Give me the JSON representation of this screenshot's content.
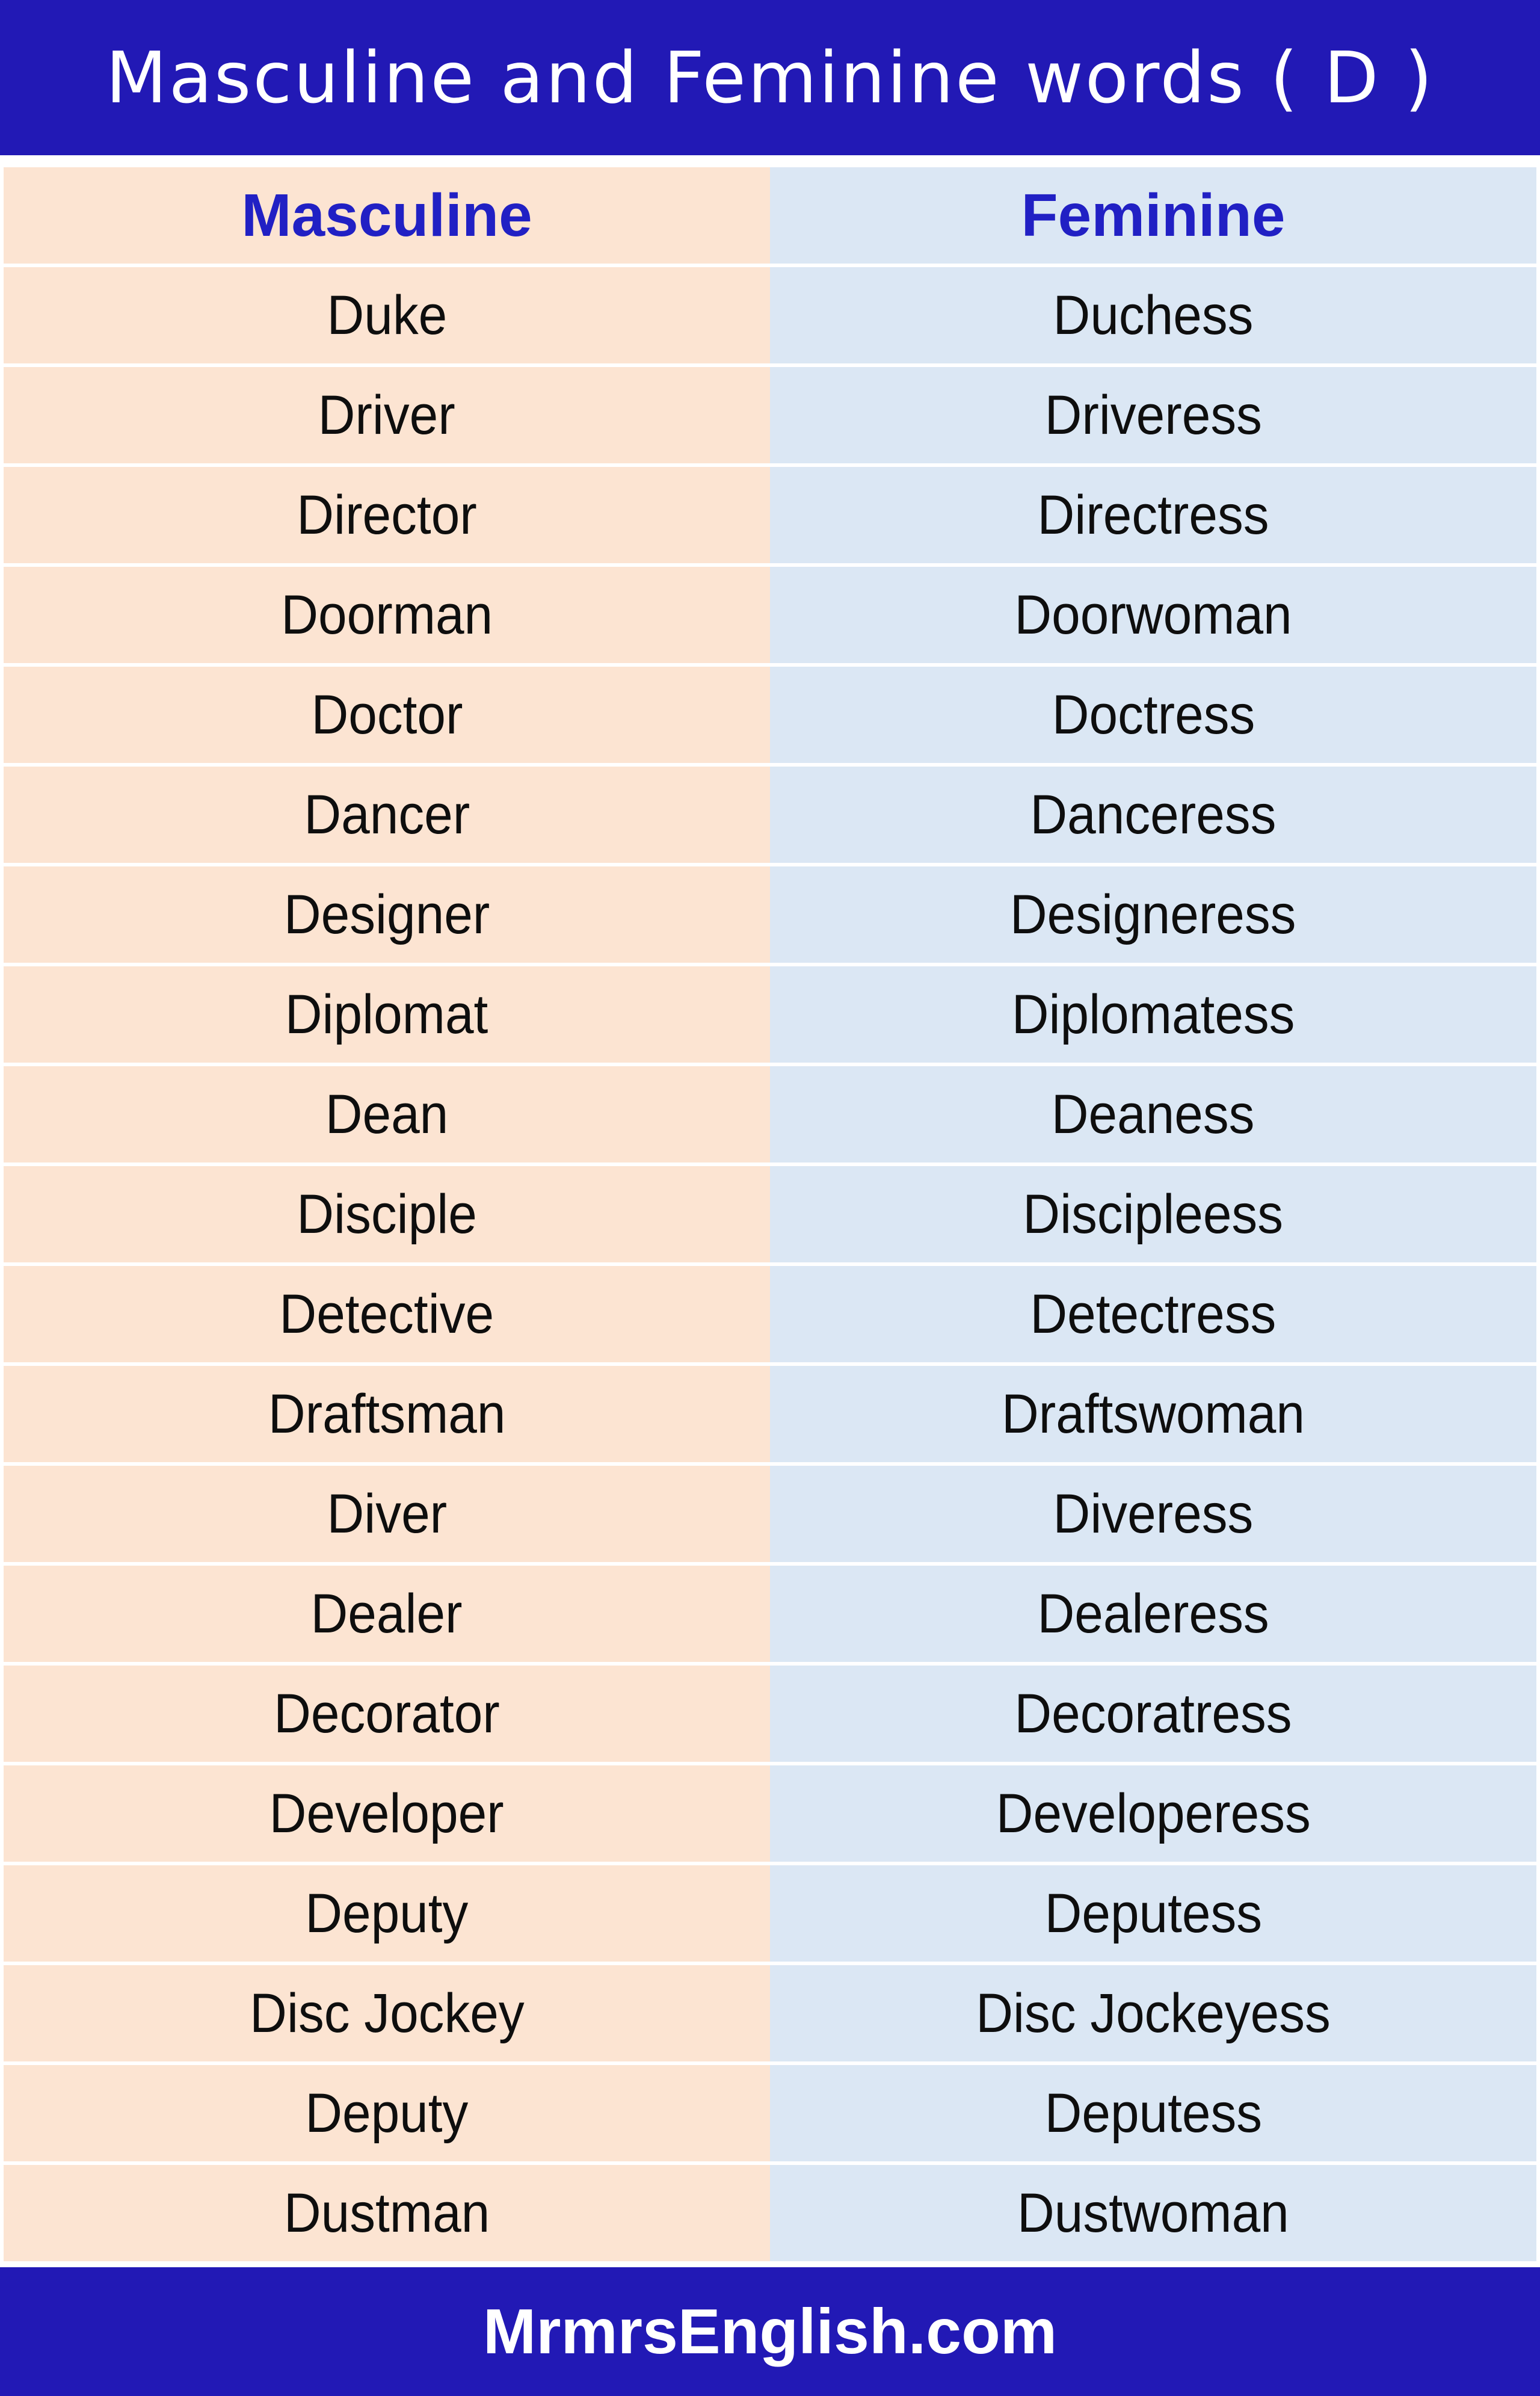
{
  "title": "Masculine and Feminine words ( D )",
  "footer": {
    "site": "MrmrsEnglish.com"
  },
  "table": {
    "headers": {
      "masculine": "Masculine",
      "feminine": "Feminine"
    },
    "rows": [
      {
        "masculine": "Duke",
        "feminine": "Duchess"
      },
      {
        "masculine": "Driver",
        "feminine": "Driveress"
      },
      {
        "masculine": "Director",
        "feminine": "Directress"
      },
      {
        "masculine": "Doorman",
        "feminine": "Doorwoman"
      },
      {
        "masculine": "Doctor",
        "feminine": "Doctress"
      },
      {
        "masculine": "Dancer",
        "feminine": "Danceress"
      },
      {
        "masculine": "Designer",
        "feminine": "Designeress"
      },
      {
        "masculine": "Diplomat",
        "feminine": "Diplomatess"
      },
      {
        "masculine": "Dean",
        "feminine": "Deaness"
      },
      {
        "masculine": "Disciple",
        "feminine": "Discipleess"
      },
      {
        "masculine": "Detective",
        "feminine": "Detectress"
      },
      {
        "masculine": "Draftsman",
        "feminine": "Draftswoman"
      },
      {
        "masculine": "Diver",
        "feminine": "Diveress"
      },
      {
        "masculine": "Dealer",
        "feminine": "Dealeress"
      },
      {
        "masculine": "Decorator",
        "feminine": "Decoratress"
      },
      {
        "masculine": "Developer",
        "feminine": "Developeress"
      },
      {
        "masculine": "Deputy",
        "feminine": "Deputess"
      },
      {
        "masculine": "Disc Jockey",
        "feminine": "Disc Jockeyess"
      },
      {
        "masculine": "Deputy",
        "feminine": "Deputess"
      },
      {
        "masculine": "Dustman",
        "feminine": "Dustwoman"
      }
    ]
  },
  "colors": {
    "banner": "#2219b5",
    "header_text": "#2120c4",
    "masculine_bg": "#fce4d2",
    "feminine_bg": "#dbe7f4",
    "word_text": "#0e0e0e",
    "page_bg": "#ffffff"
  }
}
